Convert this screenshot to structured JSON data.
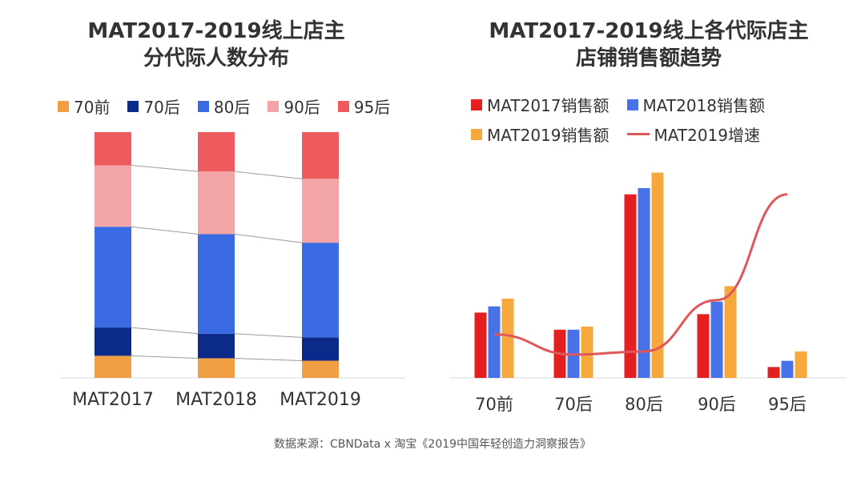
{
  "source": "数据来源：CBNData x 淘宝《2019中国年轻创造力洞察报告》",
  "colors": {
    "70前": "#f0a042",
    "70后": "#0b2a8a",
    "80后": "#3a6be3",
    "90后": "#f2a4a6",
    "95后": "#ef5a5e",
    "MAT2017销售额": "#e41f1f",
    "MAT2018销售额": "#4a72e8",
    "MAT2019销售额": "#f7a83c",
    "MAT2019增速": "#e0575a"
  },
  "chart_data": [
    {
      "type": "bar",
      "stacked": true,
      "title_lines": [
        "MAT2017-2019线上店主",
        "分代际人数分布"
      ],
      "categories": [
        "MAT2017",
        "MAT2018",
        "MAT2019"
      ],
      "series": [
        {
          "name": "70前",
          "values": [
            0.09,
            0.08,
            0.07
          ]
        },
        {
          "name": "70后",
          "values": [
            0.115,
            0.1,
            0.095
          ]
        },
        {
          "name": "80后",
          "values": [
            0.41,
            0.405,
            0.385
          ]
        },
        {
          "name": "90后",
          "values": [
            0.25,
            0.255,
            0.26
          ]
        },
        {
          "name": "95后",
          "values": [
            0.135,
            0.16,
            0.19
          ]
        }
      ],
      "ylim": [
        0,
        1
      ],
      "legend_position": "top",
      "grid": false
    },
    {
      "type": "bar",
      "title_lines": [
        "MAT2017-2019线上各代际店主",
        "店铺销售额趋势"
      ],
      "categories": [
        "70前",
        "70后",
        "80后",
        "90后",
        "95后"
      ],
      "series": [
        {
          "name": "MAT2017销售额",
          "values": [
            21,
            15.5,
            59,
            20.5,
            3.5
          ]
        },
        {
          "name": "MAT2018销售额",
          "values": [
            23,
            15.5,
            61,
            24.5,
            5.5
          ]
        },
        {
          "name": "MAT2019销售额",
          "values": [
            25.5,
            16.5,
            66,
            29.5,
            8.5
          ]
        }
      ],
      "line_series": [
        {
          "name": "MAT2019增速",
          "values": [
            14,
            7.5,
            8.5,
            25,
            59
          ]
        }
      ],
      "ylim": [
        0,
        70
      ],
      "legend_position": "top",
      "grid": false
    }
  ]
}
